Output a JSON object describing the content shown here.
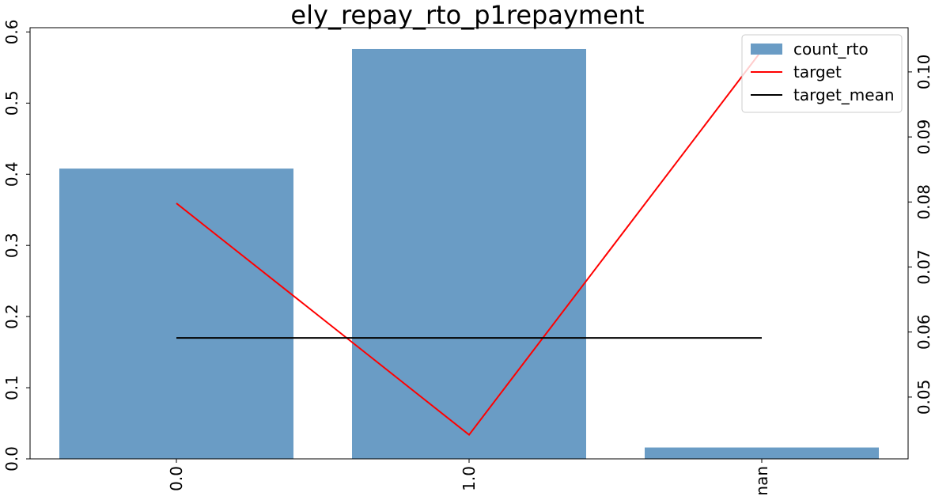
{
  "chart_data": {
    "type": "bar",
    "title": "ely_repay_rto_p1repayment",
    "categories": [
      "0.0",
      "1.0",
      "nan"
    ],
    "series": [
      {
        "name": "count_rto",
        "type": "bar",
        "axis": "left",
        "values": [
          0.408,
          0.576,
          0.016
        ]
      },
      {
        "name": "target",
        "type": "line",
        "axis": "right",
        "values": [
          0.0798,
          0.0442,
          0.1033
        ]
      },
      {
        "name": "target_mean",
        "type": "line",
        "axis": "right",
        "values": [
          0.0591,
          0.0591,
          0.0591
        ]
      }
    ],
    "left_axis": {
      "ylim": [
        0,
        0.606
      ],
      "ticks": [
        0.0,
        0.1,
        0.2,
        0.3,
        0.4,
        0.5,
        0.6
      ],
      "tick_labels": [
        "0.0",
        "0.1",
        "0.2",
        "0.3",
        "0.4",
        "0.5",
        "0.6"
      ]
    },
    "right_axis": {
      "ylim": [
        0.0405,
        0.1068
      ],
      "ticks": [
        0.05,
        0.06,
        0.07,
        0.08,
        0.09,
        0.1
      ],
      "tick_labels": [
        "0.05",
        "0.06",
        "0.07",
        "0.08",
        "0.09",
        "0.10"
      ]
    },
    "legend_position": "top-right",
    "grid": false,
    "colors": {
      "bar": "#6a9cc5",
      "target": "#ff0000",
      "target_mean": "#000000"
    }
  }
}
